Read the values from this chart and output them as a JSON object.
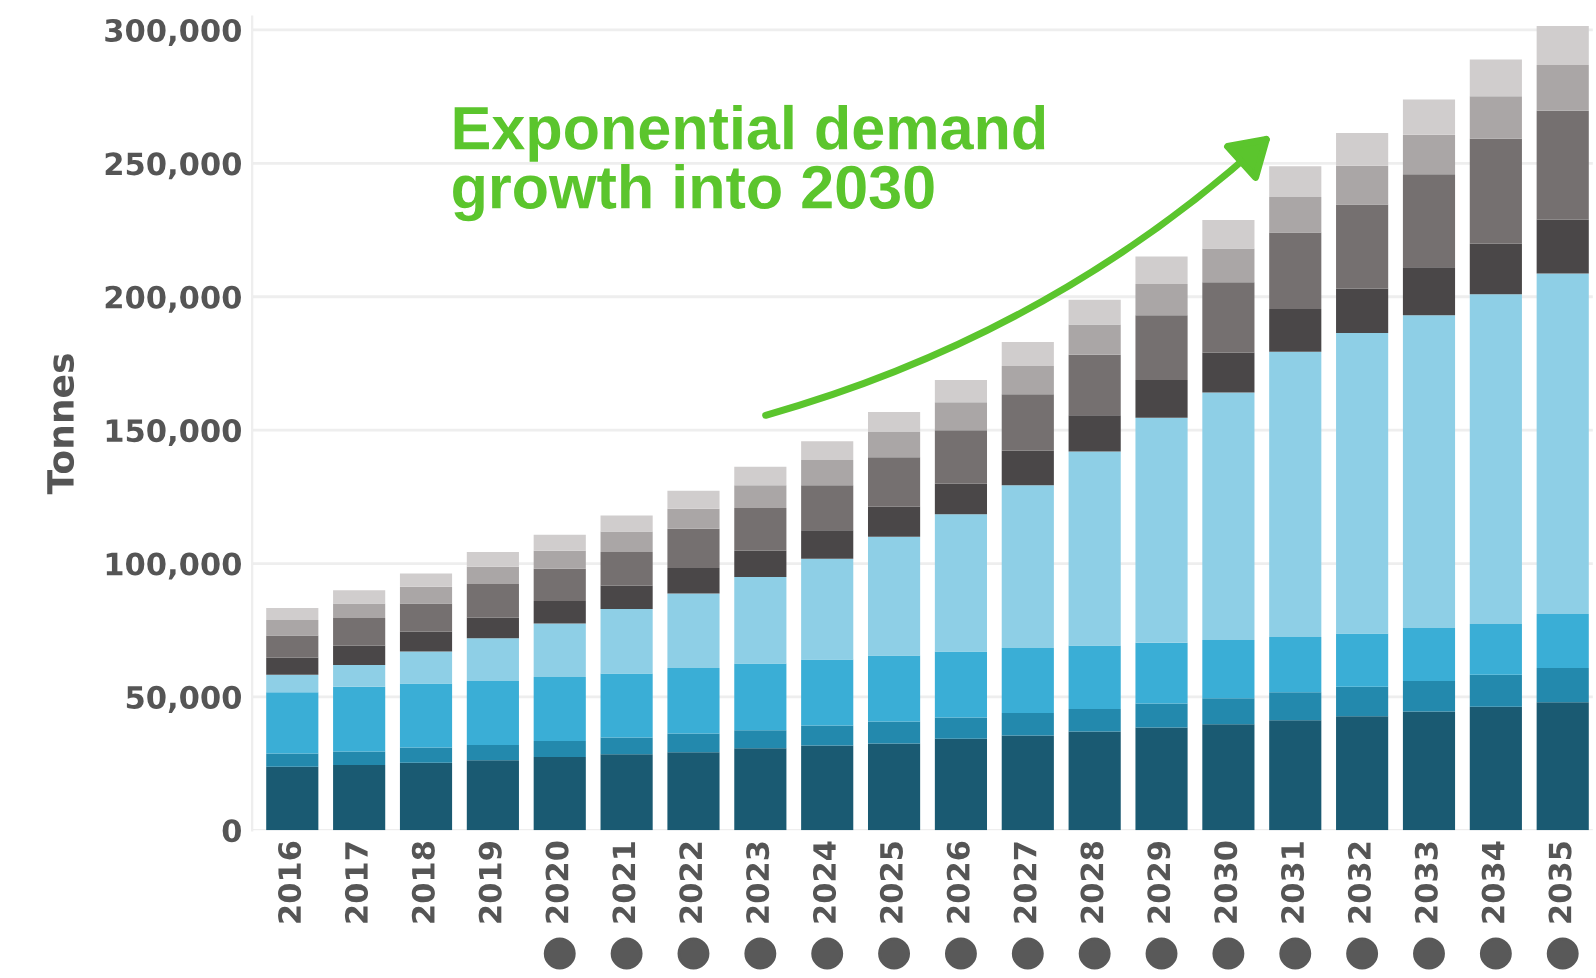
{
  "chart_data": {
    "type": "bar",
    "stacked": true,
    "ylabel": "Tonnes",
    "categories": [
      "2016",
      "2017",
      "2018",
      "2019",
      "2020",
      "2021",
      "2022",
      "2023",
      "2024",
      "2025",
      "2026",
      "2027",
      "2028",
      "2029",
      "2030",
      "2031",
      "2032",
      "2033",
      "2034",
      "2035"
    ],
    "series": [
      {
        "color": "#1a5a72",
        "values": [
          23800,
          24500,
          25300,
          26300,
          27500,
          28500,
          29300,
          30800,
          31800,
          32500,
          34300,
          35500,
          37000,
          38500,
          39800,
          41300,
          42800,
          44500,
          46300,
          48000
        ]
      },
      {
        "color": "#2389ad",
        "values": [
          5000,
          5000,
          5700,
          5700,
          6000,
          6300,
          7000,
          6700,
          7500,
          8300,
          8000,
          8500,
          8500,
          9000,
          9700,
          10500,
          11000,
          11500,
          12000,
          12800
        ]
      },
      {
        "color": "#3aaed6",
        "values": [
          23000,
          24300,
          24000,
          24000,
          24000,
          24000,
          24500,
          25000,
          24700,
          24700,
          24700,
          24300,
          23800,
          22800,
          21800,
          20700,
          20000,
          19800,
          19000,
          20300
        ]
      },
      {
        "color": "#8ecfe6",
        "values": [
          6500,
          8200,
          12000,
          16000,
          20000,
          24200,
          28000,
          32500,
          37800,
          44500,
          51500,
          61000,
          72700,
          84300,
          92800,
          106900,
          112600,
          117300,
          123600,
          127600
        ]
      },
      {
        "color": "#4a4748",
        "values": [
          6500,
          7300,
          7500,
          7800,
          8500,
          8800,
          9500,
          9800,
          10700,
          11300,
          11500,
          13000,
          13600,
          14200,
          15000,
          16000,
          16700,
          18000,
          19000,
          20200
        ]
      },
      {
        "color": "#757070",
        "values": [
          8200,
          10300,
          10500,
          12500,
          12000,
          12500,
          14700,
          16000,
          16800,
          18500,
          20000,
          21200,
          22700,
          24300,
          26300,
          28700,
          31500,
          34800,
          39300,
          40800
        ]
      },
      {
        "color": "#aaa6a6",
        "values": [
          5800,
          5400,
          6300,
          6500,
          6800,
          7700,
          7500,
          8500,
          9500,
          9500,
          10500,
          10500,
          11300,
          11700,
          12700,
          13300,
          14500,
          14800,
          16000,
          17200
        ]
      },
      {
        "color": "#d0cdcd",
        "values": [
          4500,
          5000,
          5000,
          5500,
          6000,
          6000,
          6800,
          7000,
          7000,
          7500,
          8300,
          9000,
          9300,
          10300,
          10700,
          11500,
          12300,
          13200,
          13700,
          14600
        ]
      }
    ],
    "ylim": [
      0,
      305000
    ],
    "yticks": [
      0,
      {
        "value": 50000,
        "label": "50,000"
      },
      {
        "value": 100000,
        "label": "100,000"
      },
      {
        "value": 150000,
        "label": "150,000"
      },
      {
        "value": 200000,
        "label": "200,000"
      },
      {
        "value": 250000,
        "label": "250,000"
      },
      {
        "value": 300000,
        "label": "300,000"
      }
    ],
    "grid": "y",
    "annotations": [
      "Exponential demand\ngrowth into 2030"
    ]
  }
}
